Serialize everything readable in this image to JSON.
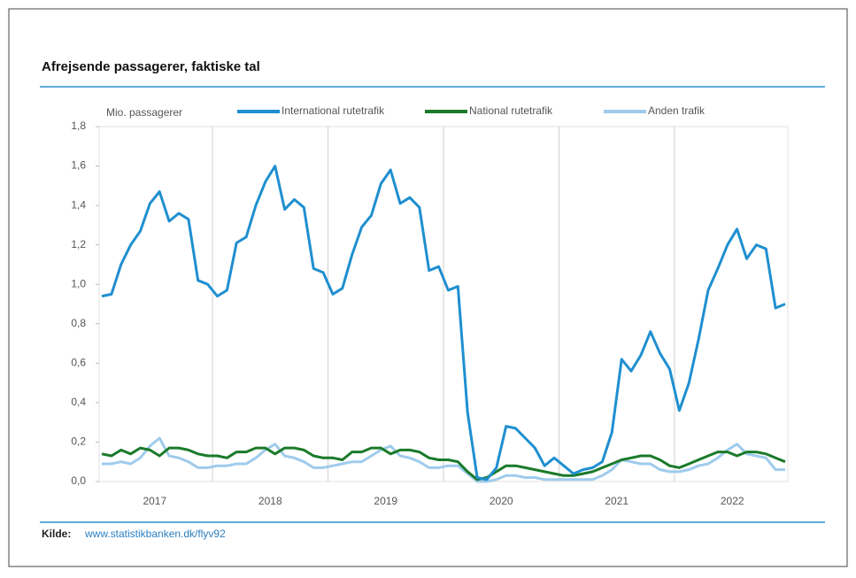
{
  "chart_data": {
    "type": "line",
    "title": "Afrejsende passagerer, faktiske tal",
    "y_label": "Mio. passagerer",
    "source_label": "Kilde:",
    "source_link": "www.statistikbanken.dk/flyv92",
    "categories": [
      null,
      null,
      null,
      null,
      null,
      null,
      "2017",
      null,
      null,
      null,
      null,
      null,
      null,
      null,
      null,
      null,
      null,
      null,
      "2018",
      null,
      null,
      null,
      null,
      null,
      null,
      null,
      null,
      null,
      null,
      null,
      "2019",
      null,
      null,
      null,
      null,
      null,
      null,
      null,
      null,
      null,
      null,
      null,
      "2020",
      null,
      null,
      null,
      null,
      null,
      null,
      null,
      null,
      null,
      null,
      null,
      "2021",
      null,
      null,
      null,
      null,
      null,
      null,
      null,
      null,
      null,
      null,
      null,
      "2022",
      null,
      null,
      null,
      null,
      null
    ],
    "ylim": [
      0,
      1.8
    ],
    "yticks": [
      {
        "value": 0,
        "label": "0,0"
      },
      {
        "value": 0.2,
        "label": "0,2"
      },
      {
        "value": 0.4,
        "label": "0,4"
      },
      {
        "value": 0.6,
        "label": "0,6"
      },
      {
        "value": 0.8,
        "label": "0,8"
      },
      {
        "value": 1.0,
        "label": "1,0"
      },
      {
        "value": 1.2,
        "label": "1,2"
      },
      {
        "value": 1.4,
        "label": "1,4"
      },
      {
        "value": 1.6,
        "label": "1,6"
      },
      {
        "value": 1.8,
        "label": "1,8"
      }
    ],
    "series": [
      {
        "name": "International rutetrafik",
        "color": "#1f8fd0",
        "values": [
          0.94,
          0.95,
          1.1,
          1.2,
          1.27,
          1.41,
          1.47,
          1.32,
          1.36,
          1.33,
          1.02,
          1.0,
          0.94,
          0.97,
          1.21,
          1.24,
          1.4,
          1.52,
          1.6,
          1.38,
          1.43,
          1.39,
          1.08,
          1.06,
          0.95,
          0.98,
          1.15,
          1.29,
          1.35,
          1.51,
          1.58,
          1.41,
          1.44,
          1.39,
          1.07,
          1.09,
          0.97,
          0.99,
          0.35,
          0.02,
          0.01,
          0.07,
          0.28,
          0.27,
          0.22,
          0.17,
          0.08,
          0.12,
          0.08,
          0.04,
          0.06,
          0.07,
          0.1,
          0.25,
          0.62,
          0.56,
          0.64,
          0.76,
          0.65,
          0.57,
          0.36,
          0.5,
          0.72,
          0.97,
          1.08,
          1.2,
          1.28,
          1.13,
          1.2,
          1.18,
          0.88,
          0.9
        ]
      },
      {
        "name": "National rutetrafik",
        "color": "#1a7a2a",
        "values": [
          0.14,
          0.13,
          0.16,
          0.14,
          0.17,
          0.16,
          0.13,
          0.17,
          0.17,
          0.16,
          0.14,
          0.13,
          0.13,
          0.12,
          0.15,
          0.15,
          0.17,
          0.17,
          0.14,
          0.17,
          0.17,
          0.16,
          0.13,
          0.12,
          0.12,
          0.11,
          0.15,
          0.15,
          0.17,
          0.17,
          0.14,
          0.16,
          0.16,
          0.15,
          0.12,
          0.11,
          0.11,
          0.1,
          0.05,
          0.01,
          0.02,
          0.05,
          0.08,
          0.08,
          0.07,
          0.06,
          0.05,
          0.04,
          0.03,
          0.03,
          0.04,
          0.05,
          0.07,
          0.09,
          0.11,
          0.12,
          0.13,
          0.13,
          0.11,
          0.08,
          0.07,
          0.09,
          0.11,
          0.13,
          0.15,
          0.15,
          0.13,
          0.15,
          0.15,
          0.14,
          0.12,
          0.1
        ]
      },
      {
        "name": "Anden trafik",
        "color": "#9fcbec",
        "values": [
          0.09,
          0.09,
          0.1,
          0.09,
          0.12,
          0.18,
          0.22,
          0.13,
          0.12,
          0.1,
          0.07,
          0.07,
          0.08,
          0.08,
          0.09,
          0.09,
          0.12,
          0.16,
          0.19,
          0.13,
          0.12,
          0.1,
          0.07,
          0.07,
          0.08,
          0.09,
          0.1,
          0.1,
          0.13,
          0.16,
          0.18,
          0.13,
          0.12,
          0.1,
          0.07,
          0.07,
          0.08,
          0.08,
          0.04,
          0.0,
          0.0,
          0.01,
          0.03,
          0.03,
          0.02,
          0.02,
          0.01,
          0.01,
          0.01,
          0.01,
          0.01,
          0.01,
          0.03,
          0.06,
          0.11,
          0.1,
          0.09,
          0.09,
          0.06,
          0.05,
          0.05,
          0.06,
          0.08,
          0.09,
          0.12,
          0.16,
          0.19,
          0.14,
          0.13,
          0.12,
          0.06,
          0.06
        ]
      }
    ]
  }
}
